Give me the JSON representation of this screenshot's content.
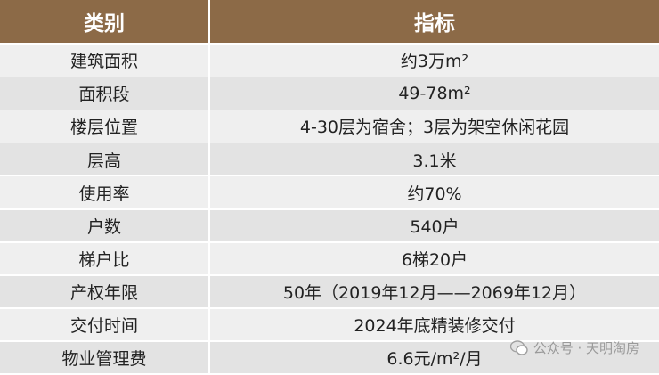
{
  "header": {
    "columns": [
      "类别",
      "指标"
    ]
  },
  "table": {
    "rows": [
      [
        "建筑面积",
        "约3万m²"
      ],
      [
        "面积段",
        "49-78m²"
      ],
      [
        "楼层位置",
        "4-30层为宿舍；3层为架空休闲花园"
      ],
      [
        "层高",
        "3.1米"
      ],
      [
        "使用率",
        "约70%"
      ],
      [
        "户数",
        "540户"
      ],
      [
        "梯户比",
        "6梯20户"
      ],
      [
        "产权年限",
        "50年（2019年12月——2069年12月）"
      ],
      [
        "交付时间",
        "2024年底精装修交付"
      ],
      [
        "物业管理费",
        "6.6元/m²/月"
      ]
    ]
  },
  "watermark": "公众号 · 天明淘房"
}
